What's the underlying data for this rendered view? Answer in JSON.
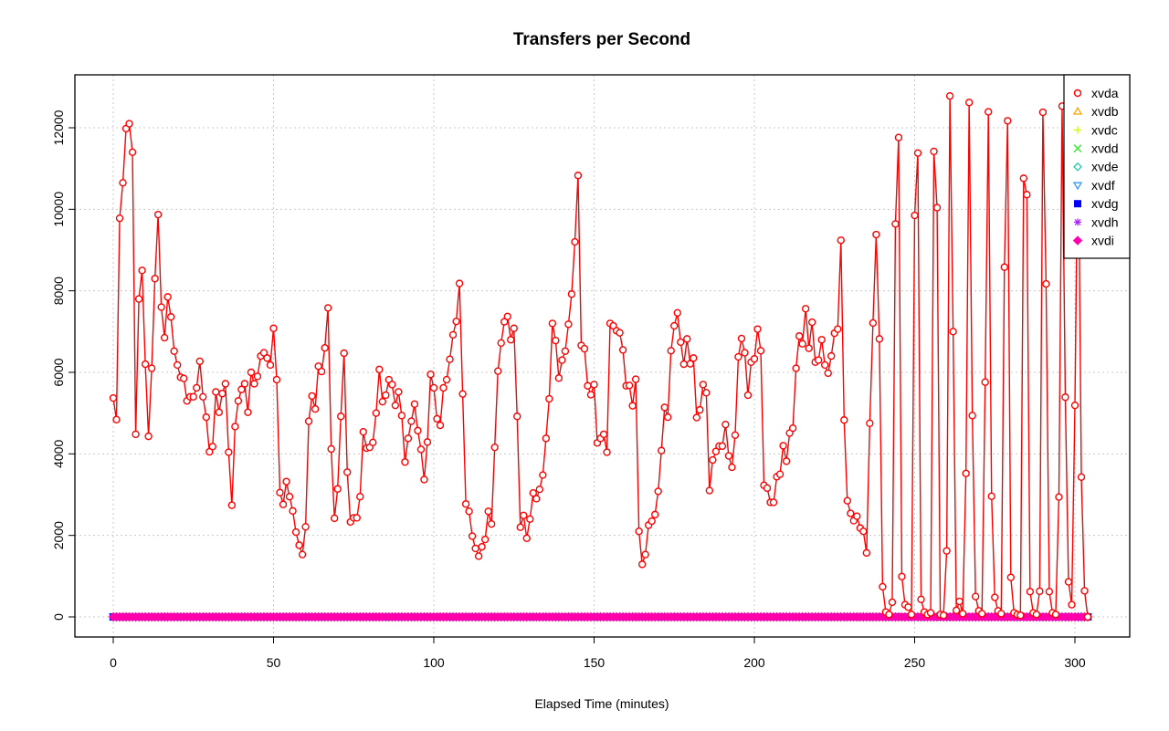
{
  "chart_data": {
    "type": "line",
    "title": "Transfers per Second",
    "xlabel": "Elapsed Time (minutes)",
    "ylabel": "",
    "xlim": [
      0,
      306
    ],
    "ylim": [
      -500,
      13000
    ],
    "xticks": [
      0,
      50,
      100,
      150,
      200,
      250,
      300
    ],
    "yticks": [
      0,
      2000,
      4000,
      6000,
      8000,
      10000,
      12000
    ],
    "grid": true,
    "legend_position": "top-right",
    "series": [
      {
        "name": "xvda",
        "color": "#ff0000",
        "marker": "circle",
        "values": [
          5370,
          4840,
          9780,
          10650,
          11980,
          12100,
          11400,
          4480,
          7800,
          8500,
          6200,
          4430,
          6100,
          8300,
          9870,
          7600,
          6850,
          7850,
          7360,
          6520,
          6180,
          5880,
          5850,
          5300,
          5400,
          5400,
          5620,
          6270,
          5400,
          4900,
          4050,
          4180,
          5520,
          5020,
          5480,
          5720,
          4040,
          2740,
          4670,
          5300,
          5580,
          5720,
          5020,
          6000,
          5720,
          5900,
          6400,
          6480,
          6350,
          6180,
          7080,
          5820,
          3050,
          2760,
          3320,
          2950,
          2600,
          2080,
          1760,
          1530,
          2210,
          4800,
          5420,
          5100,
          6150,
          6020,
          6600,
          7580,
          4120,
          2420,
          3140,
          4920,
          6470,
          3550,
          2330,
          2430,
          2430,
          2950,
          4540,
          4140,
          4160,
          4280,
          5000,
          6070,
          5280,
          5440,
          5820,
          5700,
          5190,
          5520,
          4940,
          3800,
          4380,
          4800,
          5220,
          4570,
          4110,
          3370,
          4290,
          5950,
          5620,
          4860,
          4700,
          5620,
          5820,
          6320,
          6920,
          7250,
          8180,
          5470,
          2770,
          2590,
          1980,
          1680,
          1490,
          1720,
          1900,
          2590,
          2280,
          4160,
          6030,
          6720,
          7240,
          7370,
          6800,
          7080,
          4920,
          2200,
          2490,
          1930,
          2400,
          3040,
          2900,
          3130,
          3480,
          4380,
          5350,
          7200,
          6780,
          5860,
          6300,
          6520,
          7180,
          7920,
          9200,
          10830,
          6660,
          6580,
          5670,
          5450,
          5700,
          4270,
          4380,
          4480,
          4040,
          7200,
          7140,
          7020,
          6970,
          6550,
          5670,
          5680,
          5180,
          5830,
          2100,
          1290,
          1530,
          2250,
          2350,
          2510,
          3080,
          4080,
          5140,
          4900,
          6530,
          7140,
          7460,
          6740,
          6200,
          6820,
          6210,
          6350,
          4890,
          5080,
          5700,
          5500,
          3100,
          3850,
          4060,
          4190,
          4190,
          4720,
          3950,
          3670,
          4460,
          6380,
          6830,
          6480,
          5440,
          6250,
          6330,
          7060,
          6530,
          3230,
          3160,
          2810,
          2810,
          3440,
          3500,
          4200,
          3820,
          4510,
          4630,
          6100,
          6890,
          6700,
          7560,
          6590,
          7230,
          6250,
          6300,
          6800,
          6180,
          5980,
          6400,
          6960,
          7060,
          9240,
          4830,
          2850,
          2540,
          2360,
          2470,
          2180,
          2100,
          1570,
          4750,
          7210,
          9380,
          6820,
          740,
          120,
          60,
          360,
          9640,
          11760,
          990,
          300,
          240,
          60,
          9850,
          11380,
          430,
          120,
          60,
          100,
          11420,
          10040,
          60,
          40,
          1620,
          12780,
          7000,
          160,
          380,
          80,
          3520,
          12620,
          4940,
          500,
          150,
          80,
          5760,
          12390,
          2960,
          480,
          150,
          80,
          8580,
          12170,
          970,
          100,
          60,
          40,
          10760,
          10360,
          620,
          100,
          60,
          630,
          12380,
          8170,
          620,
          100,
          60,
          2940,
          12530,
          5390,
          860,
          300,
          5190,
          12480,
          3430,
          640,
          0
        ]
      },
      {
        "name": "xvdb",
        "color": "#ffa500",
        "marker": "triangle-up",
        "constant_value": 0
      },
      {
        "name": "xvdc",
        "color": "#ccff00",
        "marker": "plus",
        "constant_value": 0
      },
      {
        "name": "xvdd",
        "color": "#33ee33",
        "marker": "x",
        "constant_value": 0
      },
      {
        "name": "xvde",
        "color": "#22ccaa",
        "marker": "diamond-open",
        "constant_value": 0
      },
      {
        "name": "xvdf",
        "color": "#3399ff",
        "marker": "triangle-down",
        "constant_value": 0
      },
      {
        "name": "xvdg",
        "color": "#0000ff",
        "marker": "square",
        "constant_value": 0
      },
      {
        "name": "xvdh",
        "color": "#aa22ff",
        "marker": "asterisk",
        "constant_value": 0
      },
      {
        "name": "xvdi",
        "color": "#ff00aa",
        "marker": "diamond",
        "constant_value": 0
      }
    ]
  }
}
